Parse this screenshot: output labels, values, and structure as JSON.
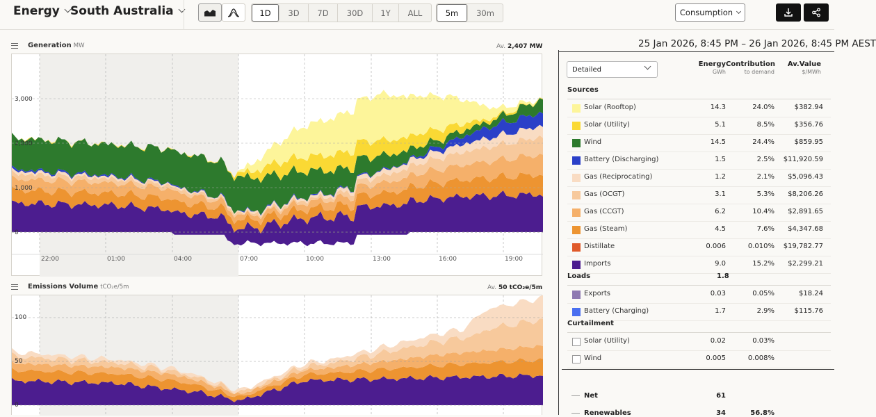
{
  "header": {
    "energy_label": "Energy",
    "region_label": "South Australia",
    "ranges": [
      "1D",
      "3D",
      "7D",
      "30D",
      "1Y",
      "ALL"
    ],
    "active_range": "1D",
    "intervals": [
      "5m",
      "30m"
    ],
    "active_interval": "5m",
    "consumption_label": "Consumption"
  },
  "generation_panel": {
    "title": "Generation",
    "unit": "MW",
    "average_label": "Av.",
    "average_value": "2,407 MW",
    "y_ticks": [
      "3,000",
      "2,000",
      "1,000",
      "0"
    ],
    "x_ticks": [
      "22:00",
      "01:00",
      "04:00",
      "07:00",
      "10:00",
      "13:00",
      "16:00",
      "19:00"
    ]
  },
  "emissions_panel": {
    "title": "Emissions Volume",
    "unit": "tCO₂e/5m",
    "average_label": "Av.",
    "average_value": "50 tCO₂e/5m",
    "y_ticks": [
      "100",
      "50",
      "0"
    ]
  },
  "table": {
    "date_range": "25 Jan 2026, 8:45 PM – 26 Jan 2026, 8:45 PM AEST",
    "view_select": "Detailed",
    "col_energy": "Energy",
    "col_energy_unit": "GWh",
    "col_contribution": "Contribution",
    "col_contribution_unit": "to demand",
    "col_value": "Av.Value",
    "col_value_unit": "$/MWh",
    "sources_label": "Sources",
    "sources": [
      {
        "name": "Solar (Rooftop)",
        "energy": "14.3",
        "contribution": "24.0%",
        "value": "$382.94",
        "color": "#fdf59a"
      },
      {
        "name": "Solar (Utility)",
        "energy": "5.1",
        "contribution": "8.5%",
        "value": "$356.76",
        "color": "#fad934"
      },
      {
        "name": "Wind",
        "energy": "14.5",
        "contribution": "24.4%",
        "value": "$859.95",
        "color": "#2d7a2d"
      },
      {
        "name": "Battery (Discharging)",
        "energy": "1.5",
        "contribution": "2.5%",
        "value": "$11,920.59",
        "color": "#2b40c8"
      },
      {
        "name": "Gas (Reciprocating)",
        "energy": "1.2",
        "contribution": "2.1%",
        "value": "$5,096.43",
        "color": "#f9dcc3"
      },
      {
        "name": "Gas (OCGT)",
        "energy": "3.1",
        "contribution": "5.3%",
        "value": "$8,206.26",
        "color": "#f7c99c"
      },
      {
        "name": "Gas (CCGT)",
        "energy": "6.2",
        "contribution": "10.4%",
        "value": "$2,891.65",
        "color": "#f5b06a"
      },
      {
        "name": "Gas (Steam)",
        "energy": "4.5",
        "contribution": "7.6%",
        "value": "$4,347.68",
        "color": "#ed9431"
      },
      {
        "name": "Distillate",
        "energy": "0.006",
        "contribution": "0.010%",
        "value": "$19,782.77",
        "color": "#e05a2a"
      },
      {
        "name": "Imports",
        "energy": "9.0",
        "contribution": "15.2%",
        "value": "$2,299.21",
        "color": "#4c1d8f"
      }
    ],
    "loads_label": "Loads",
    "loads_total": "1.8",
    "loads": [
      {
        "name": "Exports",
        "energy": "0.03",
        "contribution": "0.05%",
        "value": "$18.24",
        "color": "#8e79b1"
      },
      {
        "name": "Battery (Charging)",
        "energy": "1.7",
        "contribution": "2.9%",
        "value": "$115.76",
        "color": "#4a6ff0"
      }
    ],
    "curtailment_label": "Curtailment",
    "curtailment": [
      {
        "name": "Solar (Utility)",
        "energy": "0.02",
        "contribution": "0.03%"
      },
      {
        "name": "Wind",
        "energy": "0.005",
        "contribution": "0.008%"
      }
    ],
    "net_label": "Net",
    "net_value": "61",
    "renewables_label": "Renewables",
    "renewables_value": "34",
    "renewables_pct": "56.8%"
  }
}
